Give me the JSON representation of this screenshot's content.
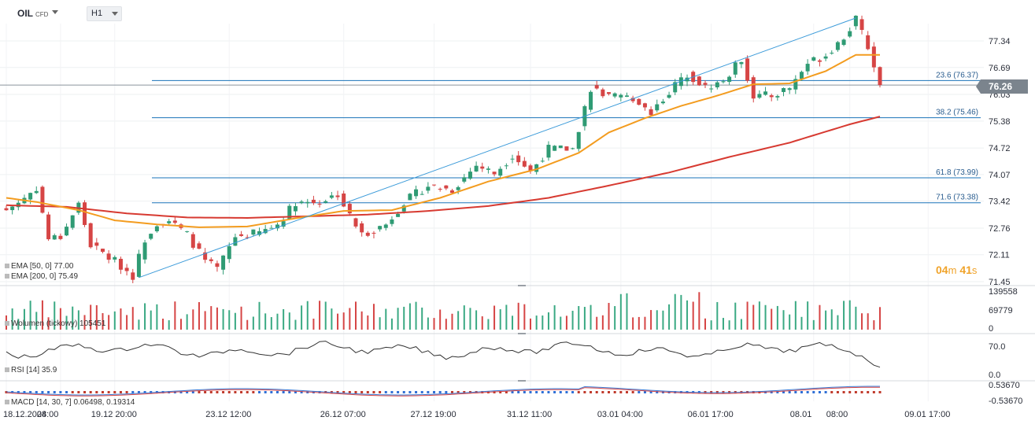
{
  "header": {
    "symbol": "OIL",
    "symbol_type": "CFD",
    "timeframe": "H1"
  },
  "current_price": "76.26",
  "countdown": {
    "min": "04",
    "min_unit": "m",
    "sec": "41",
    "sec_unit": "s"
  },
  "indicators": {
    "ema50": {
      "label": "EMA [50, 0] 77.00",
      "color": "#f39c1f"
    },
    "ema200": {
      "label": "EMA [200, 0] 75.49",
      "color": "#d73a31"
    },
    "volume": {
      "label": "Wolumen (tickowy) 105451"
    },
    "rsi": {
      "label": "RSI [14] 35.9"
    },
    "macd": {
      "label": "MACD [14, 30, 7] 0.06498, 0.19314"
    }
  },
  "chart_data": {
    "type": "candlestick",
    "price_axis": {
      "ticks": [
        77.34,
        76.69,
        76.03,
        75.38,
        74.72,
        74.07,
        73.42,
        72.76,
        72.11,
        71.45
      ],
      "tick_labels": [
        "77.34",
        "76.69",
        "76.03",
        "75.38",
        "74.72",
        "74.07",
        "73.42",
        "72.76",
        "72.11",
        "71.45"
      ],
      "range": [
        71.45,
        77.9
      ]
    },
    "time_axis": {
      "labels": [
        "18.12.2024",
        "08:00",
        "19.12 20:00",
        "23.12 12:00",
        "26.12 07:00",
        "27.12 19:00",
        "31.12 11:00",
        "03.01 04:00",
        "06.01 17:00",
        "08.01",
        "08:00",
        "09.01 17:00"
      ],
      "positions": [
        0,
        9,
        18,
        37,
        56,
        71,
        87,
        102,
        117,
        134,
        140,
        153
      ]
    },
    "ohlc_anchors": [
      {
        "i": 0,
        "c": 73.2
      },
      {
        "i": 3,
        "c": 73.5
      },
      {
        "i": 5,
        "c": 73.75
      },
      {
        "i": 7,
        "c": 72.5
      },
      {
        "i": 9,
        "c": 72.55
      },
      {
        "i": 12,
        "c": 73.35
      },
      {
        "i": 14,
        "c": 72.35
      },
      {
        "i": 18,
        "c": 71.95
      },
      {
        "i": 21,
        "c": 71.6
      },
      {
        "i": 23,
        "c": 72.5
      },
      {
        "i": 25,
        "c": 72.9
      },
      {
        "i": 27,
        "c": 72.95
      },
      {
        "i": 30,
        "c": 72.6
      },
      {
        "i": 33,
        "c": 71.95
      },
      {
        "i": 35,
        "c": 71.75
      },
      {
        "i": 38,
        "c": 72.55
      },
      {
        "i": 42,
        "c": 72.65
      },
      {
        "i": 45,
        "c": 72.85
      },
      {
        "i": 48,
        "c": 73.4
      },
      {
        "i": 52,
        "c": 73.4
      },
      {
        "i": 55,
        "c": 73.6
      },
      {
        "i": 57,
        "c": 73.05
      },
      {
        "i": 59,
        "c": 72.6
      },
      {
        "i": 63,
        "c": 72.85
      },
      {
        "i": 66,
        "c": 73.4
      },
      {
        "i": 70,
        "c": 73.8
      },
      {
        "i": 74,
        "c": 73.7
      },
      {
        "i": 78,
        "c": 74.3
      },
      {
        "i": 81,
        "c": 74.1
      },
      {
        "i": 84,
        "c": 74.55
      },
      {
        "i": 87,
        "c": 74.15
      },
      {
        "i": 90,
        "c": 74.7
      },
      {
        "i": 94,
        "c": 74.7
      },
      {
        "i": 97,
        "c": 76.2
      },
      {
        "i": 100,
        "c": 75.95
      },
      {
        "i": 104,
        "c": 75.95
      },
      {
        "i": 107,
        "c": 75.6
      },
      {
        "i": 110,
        "c": 76.1
      },
      {
        "i": 113,
        "c": 76.55
      },
      {
        "i": 116,
        "c": 76.2
      },
      {
        "i": 119,
        "c": 76.35
      },
      {
        "i": 122,
        "c": 76.9
      },
      {
        "i": 124,
        "c": 76.0
      },
      {
        "i": 127,
        "c": 76.0
      },
      {
        "i": 130,
        "c": 76.2
      },
      {
        "i": 133,
        "c": 76.8
      },
      {
        "i": 136,
        "c": 77.0
      },
      {
        "i": 139,
        "c": 77.45
      },
      {
        "i": 141,
        "c": 77.85
      },
      {
        "i": 143,
        "c": 77.2
      },
      {
        "i": 145,
        "c": 76.26
      }
    ],
    "ema50": [
      {
        "i": 0,
        "v": 73.5
      },
      {
        "i": 5,
        "v": 73.4
      },
      {
        "i": 12,
        "v": 73.2
      },
      {
        "i": 18,
        "v": 72.95
      },
      {
        "i": 25,
        "v": 72.85
      },
      {
        "i": 32,
        "v": 72.78
      },
      {
        "i": 40,
        "v": 72.8
      },
      {
        "i": 48,
        "v": 73.0
      },
      {
        "i": 56,
        "v": 73.18
      },
      {
        "i": 64,
        "v": 73.2
      },
      {
        "i": 72,
        "v": 73.5
      },
      {
        "i": 80,
        "v": 73.9
      },
      {
        "i": 88,
        "v": 74.2
      },
      {
        "i": 95,
        "v": 74.6
      },
      {
        "i": 100,
        "v": 75.1
      },
      {
        "i": 106,
        "v": 75.45
      },
      {
        "i": 112,
        "v": 75.75
      },
      {
        "i": 118,
        "v": 76.0
      },
      {
        "i": 124,
        "v": 76.28
      },
      {
        "i": 130,
        "v": 76.3
      },
      {
        "i": 136,
        "v": 76.6
      },
      {
        "i": 141,
        "v": 77.0
      },
      {
        "i": 145,
        "v": 77.0
      }
    ],
    "ema200": [
      {
        "i": 0,
        "v": 73.32
      },
      {
        "i": 10,
        "v": 73.28
      },
      {
        "i": 20,
        "v": 73.12
      },
      {
        "i": 30,
        "v": 73.02
      },
      {
        "i": 40,
        "v": 73.01
      },
      {
        "i": 50,
        "v": 73.05
      },
      {
        "i": 60,
        "v": 73.09
      },
      {
        "i": 70,
        "v": 73.18
      },
      {
        "i": 80,
        "v": 73.3
      },
      {
        "i": 90,
        "v": 73.5
      },
      {
        "i": 100,
        "v": 73.8
      },
      {
        "i": 110,
        "v": 74.12
      },
      {
        "i": 120,
        "v": 74.5
      },
      {
        "i": 130,
        "v": 74.85
      },
      {
        "i": 140,
        "v": 75.3
      },
      {
        "i": 145,
        "v": 75.49
      }
    ],
    "fibonacci": [
      {
        "label": "23.6 (76.37)",
        "value": 76.37
      },
      {
        "label": "38.2 (75.46)",
        "value": 75.46
      },
      {
        "label": "61.8 (73.99)",
        "value": 73.99
      },
      {
        "label": "71.6 (73.38)",
        "value": 73.38
      }
    ],
    "channel_line": {
      "from": {
        "i": 22,
        "v": 71.55
      },
      "to": {
        "i": 141,
        "v": 77.9
      }
    },
    "volume_axis": {
      "tick_labels": [
        "139558",
        "69779",
        "0"
      ],
      "max": 139558
    },
    "rsi_axis": {
      "tick_labels": [
        "70.0",
        "0.0"
      ]
    },
    "macd_axis": {
      "tick_labels": [
        "0.53670",
        "-0.53670"
      ]
    }
  }
}
